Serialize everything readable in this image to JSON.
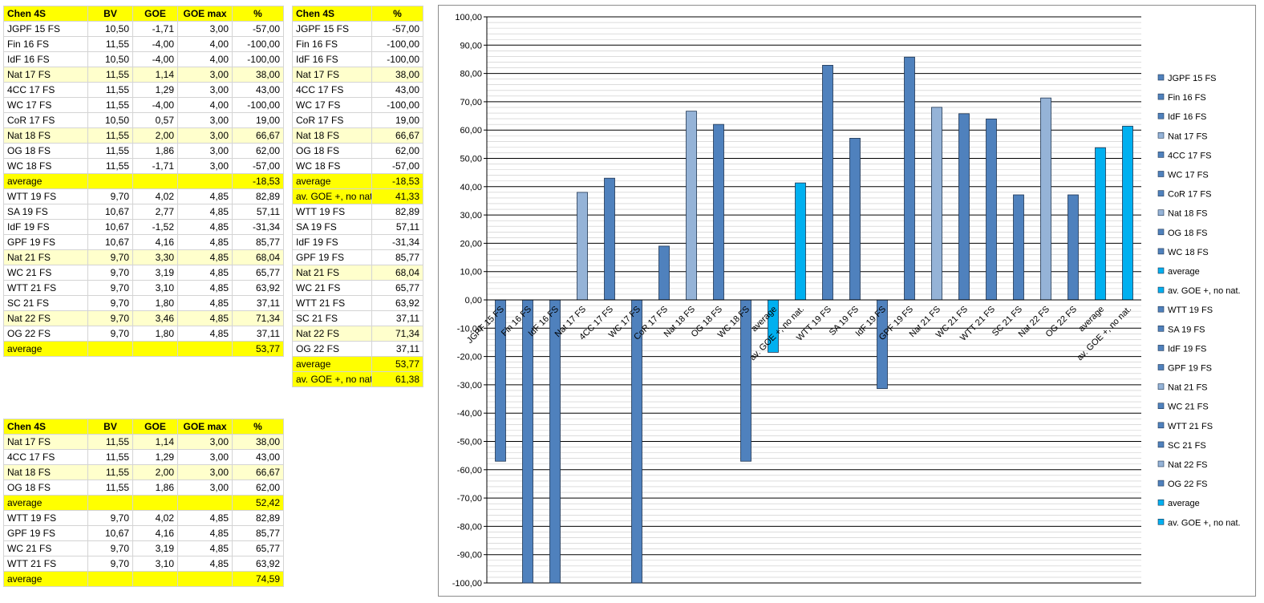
{
  "table_main": {
    "headers": [
      "Chen 4S",
      "BV",
      "GOE",
      "GOE max",
      "%"
    ],
    "rows": [
      {
        "label": "JGPF 15 FS",
        "bv": "10,50",
        "goe": "-1,71",
        "goemax": "3,00",
        "pct": "-57,00",
        "kind": "normal"
      },
      {
        "label": "Fin 16 FS",
        "bv": "11,55",
        "goe": "-4,00",
        "goemax": "4,00",
        "pct": "-100,00",
        "kind": "normal"
      },
      {
        "label": "IdF 16 FS",
        "bv": "10,50",
        "goe": "-4,00",
        "goemax": "4,00",
        "pct": "-100,00",
        "kind": "normal"
      },
      {
        "label": "Nat 17 FS",
        "bv": "11,55",
        "goe": "1,14",
        "goemax": "3,00",
        "pct": "38,00",
        "kind": "nat"
      },
      {
        "label": "4CC 17 FS",
        "bv": "11,55",
        "goe": "1,29",
        "goemax": "3,00",
        "pct": "43,00",
        "kind": "normal"
      },
      {
        "label": "WC 17 FS",
        "bv": "11,55",
        "goe": "-4,00",
        "goemax": "4,00",
        "pct": "-100,00",
        "kind": "normal"
      },
      {
        "label": "CoR 17 FS",
        "bv": "10,50",
        "goe": "0,57",
        "goemax": "3,00",
        "pct": "19,00",
        "kind": "normal"
      },
      {
        "label": "Nat 18 FS",
        "bv": "11,55",
        "goe": "2,00",
        "goemax": "3,00",
        "pct": "66,67",
        "kind": "nat"
      },
      {
        "label": "OG 18 FS",
        "bv": "11,55",
        "goe": "1,86",
        "goemax": "3,00",
        "pct": "62,00",
        "kind": "normal"
      },
      {
        "label": "WC 18 FS",
        "bv": "11,55",
        "goe": "-1,71",
        "goemax": "3,00",
        "pct": "-57,00",
        "kind": "normal"
      },
      {
        "label": "average",
        "bv": "",
        "goe": "",
        "goemax": "",
        "pct": "-18,53",
        "kind": "avg"
      },
      {
        "label": "WTT 19 FS",
        "bv": "9,70",
        "goe": "4,02",
        "goemax": "4,85",
        "pct": "82,89",
        "kind": "normal"
      },
      {
        "label": "SA 19 FS",
        "bv": "10,67",
        "goe": "2,77",
        "goemax": "4,85",
        "pct": "57,11",
        "kind": "normal"
      },
      {
        "label": "IdF 19 FS",
        "bv": "10,67",
        "goe": "-1,52",
        "goemax": "4,85",
        "pct": "-31,34",
        "kind": "normal"
      },
      {
        "label": "GPF 19 FS",
        "bv": "10,67",
        "goe": "4,16",
        "goemax": "4,85",
        "pct": "85,77",
        "kind": "normal"
      },
      {
        "label": "Nat 21 FS",
        "bv": "9,70",
        "goe": "3,30",
        "goemax": "4,85",
        "pct": "68,04",
        "kind": "nat"
      },
      {
        "label": "WC 21 FS",
        "bv": "9,70",
        "goe": "3,19",
        "goemax": "4,85",
        "pct": "65,77",
        "kind": "normal"
      },
      {
        "label": "WTT 21 FS",
        "bv": "9,70",
        "goe": "3,10",
        "goemax": "4,85",
        "pct": "63,92",
        "kind": "normal"
      },
      {
        "label": "SC 21 FS",
        "bv": "9,70",
        "goe": "1,80",
        "goemax": "4,85",
        "pct": "37,11",
        "kind": "normal"
      },
      {
        "label": "Nat 22 FS",
        "bv": "9,70",
        "goe": "3,46",
        "goemax": "4,85",
        "pct": "71,34",
        "kind": "nat"
      },
      {
        "label": "OG 22 FS",
        "bv": "9,70",
        "goe": "1,80",
        "goemax": "4,85",
        "pct": "37,11",
        "kind": "normal"
      },
      {
        "label": "average",
        "bv": "",
        "goe": "",
        "goemax": "",
        "pct": "53,77",
        "kind": "avg"
      }
    ]
  },
  "table_pct": {
    "headers": [
      "Chen 4S",
      "%"
    ],
    "rows": [
      {
        "label": "JGPF 15 FS",
        "pct": "-57,00",
        "kind": "normal"
      },
      {
        "label": "Fin 16 FS",
        "pct": "-100,00",
        "kind": "normal"
      },
      {
        "label": "IdF 16 FS",
        "pct": "-100,00",
        "kind": "normal"
      },
      {
        "label": "Nat 17 FS",
        "pct": "38,00",
        "kind": "nat"
      },
      {
        "label": "4CC 17 FS",
        "pct": "43,00",
        "kind": "normal"
      },
      {
        "label": "WC 17 FS",
        "pct": "-100,00",
        "kind": "normal"
      },
      {
        "label": "CoR 17 FS",
        "pct": "19,00",
        "kind": "normal"
      },
      {
        "label": "Nat 18 FS",
        "pct": "66,67",
        "kind": "nat"
      },
      {
        "label": "OG 18 FS",
        "pct": "62,00",
        "kind": "normal"
      },
      {
        "label": "WC 18 FS",
        "pct": "-57,00",
        "kind": "normal"
      },
      {
        "label": "average",
        "pct": "-18,53",
        "kind": "avg"
      },
      {
        "label": "av. GOE +, no nat.",
        "pct": "41,33",
        "kind": "avg"
      },
      {
        "label": "WTT 19 FS",
        "pct": "82,89",
        "kind": "normal"
      },
      {
        "label": "SA 19 FS",
        "pct": "57,11",
        "kind": "normal"
      },
      {
        "label": "IdF 19 FS",
        "pct": "-31,34",
        "kind": "normal"
      },
      {
        "label": "GPF 19 FS",
        "pct": "85,77",
        "kind": "normal"
      },
      {
        "label": "Nat 21 FS",
        "pct": "68,04",
        "kind": "nat"
      },
      {
        "label": "WC 21 FS",
        "pct": "65,77",
        "kind": "normal"
      },
      {
        "label": "WTT 21 FS",
        "pct": "63,92",
        "kind": "normal"
      },
      {
        "label": "SC 21 FS",
        "pct": "37,11",
        "kind": "normal"
      },
      {
        "label": "Nat 22 FS",
        "pct": "71,34",
        "kind": "nat"
      },
      {
        "label": "OG 22 FS",
        "pct": "37,11",
        "kind": "normal"
      },
      {
        "label": "average",
        "pct": "53,77",
        "kind": "avg"
      },
      {
        "label": "av. GOE +, no nat.",
        "pct": "61,38",
        "kind": "avg"
      }
    ]
  },
  "table_small": {
    "headers": [
      "Chen 4S",
      "BV",
      "GOE",
      "GOE max",
      "%"
    ],
    "rows": [
      {
        "label": "Nat 17 FS",
        "bv": "11,55",
        "goe": "1,14",
        "goemax": "3,00",
        "pct": "38,00",
        "kind": "nat"
      },
      {
        "label": "4CC 17 FS",
        "bv": "11,55",
        "goe": "1,29",
        "goemax": "3,00",
        "pct": "43,00",
        "kind": "normal"
      },
      {
        "label": "Nat 18 FS",
        "bv": "11,55",
        "goe": "2,00",
        "goemax": "3,00",
        "pct": "66,67",
        "kind": "nat"
      },
      {
        "label": "OG 18 FS",
        "bv": "11,55",
        "goe": "1,86",
        "goemax": "3,00",
        "pct": "62,00",
        "kind": "normal"
      },
      {
        "label": "average",
        "bv": "",
        "goe": "",
        "goemax": "",
        "pct": "52,42",
        "kind": "avg"
      },
      {
        "label": "WTT 19 FS",
        "bv": "9,70",
        "goe": "4,02",
        "goemax": "4,85",
        "pct": "82,89",
        "kind": "normal"
      },
      {
        "label": "GPF 19 FS",
        "bv": "10,67",
        "goe": "4,16",
        "goemax": "4,85",
        "pct": "85,77",
        "kind": "normal"
      },
      {
        "label": "WC 21 FS",
        "bv": "9,70",
        "goe": "3,19",
        "goemax": "4,85",
        "pct": "65,77",
        "kind": "normal"
      },
      {
        "label": "WTT 21 FS",
        "bv": "9,70",
        "goe": "3,10",
        "goemax": "4,85",
        "pct": "63,92",
        "kind": "normal"
      },
      {
        "label": "average",
        "bv": "",
        "goe": "",
        "goemax": "",
        "pct": "74,59",
        "kind": "avg"
      }
    ]
  },
  "chart_data": {
    "type": "bar",
    "title": "",
    "xlabel": "",
    "ylabel": "",
    "ylim": [
      -100,
      100
    ],
    "ytick_step": 10,
    "yticks": [
      "100,00",
      "90,00",
      "80,00",
      "70,00",
      "60,00",
      "50,00",
      "40,00",
      "30,00",
      "20,00",
      "10,00",
      "0,00",
      "-10,00",
      "-20,00",
      "-30,00",
      "-40,00",
      "-50,00",
      "-60,00",
      "-70,00",
      "-80,00",
      "-90,00",
      "-100,00"
    ],
    "grid": true,
    "legend_position": "right",
    "colors": {
      "normal": "#4f81bd",
      "nat": "#95b3d7",
      "avg": "#00b0f0"
    },
    "series": [
      {
        "name": "JGPF 15 FS",
        "value": -57.0,
        "kind": "normal"
      },
      {
        "name": "Fin 16 FS",
        "value": -100.0,
        "kind": "normal"
      },
      {
        "name": "IdF 16 FS",
        "value": -100.0,
        "kind": "normal"
      },
      {
        "name": "Nat 17 FS",
        "value": 38.0,
        "kind": "nat"
      },
      {
        "name": "4CC 17 FS",
        "value": 43.0,
        "kind": "normal"
      },
      {
        "name": "WC 17 FS",
        "value": -100.0,
        "kind": "normal"
      },
      {
        "name": "CoR 17 FS",
        "value": 19.0,
        "kind": "normal"
      },
      {
        "name": "Nat 18 FS",
        "value": 66.67,
        "kind": "nat"
      },
      {
        "name": "OG 18 FS",
        "value": 62.0,
        "kind": "normal"
      },
      {
        "name": "WC 18 FS",
        "value": -57.0,
        "kind": "normal"
      },
      {
        "name": "average",
        "value": -18.53,
        "kind": "avg"
      },
      {
        "name": "av. GOE +, no nat.",
        "value": 41.33,
        "kind": "avg"
      },
      {
        "name": "WTT 19 FS",
        "value": 82.89,
        "kind": "normal"
      },
      {
        "name": "SA 19 FS",
        "value": 57.11,
        "kind": "normal"
      },
      {
        "name": "IdF 19 FS",
        "value": -31.34,
        "kind": "normal"
      },
      {
        "name": "GPF 19 FS",
        "value": 85.77,
        "kind": "normal"
      },
      {
        "name": "Nat 21 FS",
        "value": 68.04,
        "kind": "nat"
      },
      {
        "name": "WC 21 FS",
        "value": 65.77,
        "kind": "normal"
      },
      {
        "name": "WTT 21 FS",
        "value": 63.92,
        "kind": "normal"
      },
      {
        "name": "SC 21 FS",
        "value": 37.11,
        "kind": "normal"
      },
      {
        "name": "Nat 22 FS",
        "value": 71.34,
        "kind": "nat"
      },
      {
        "name": "OG 22 FS",
        "value": 37.11,
        "kind": "normal"
      },
      {
        "name": "average",
        "value": 53.77,
        "kind": "avg"
      },
      {
        "name": "av. GOE +, no nat.",
        "value": 61.38,
        "kind": "avg"
      }
    ]
  }
}
